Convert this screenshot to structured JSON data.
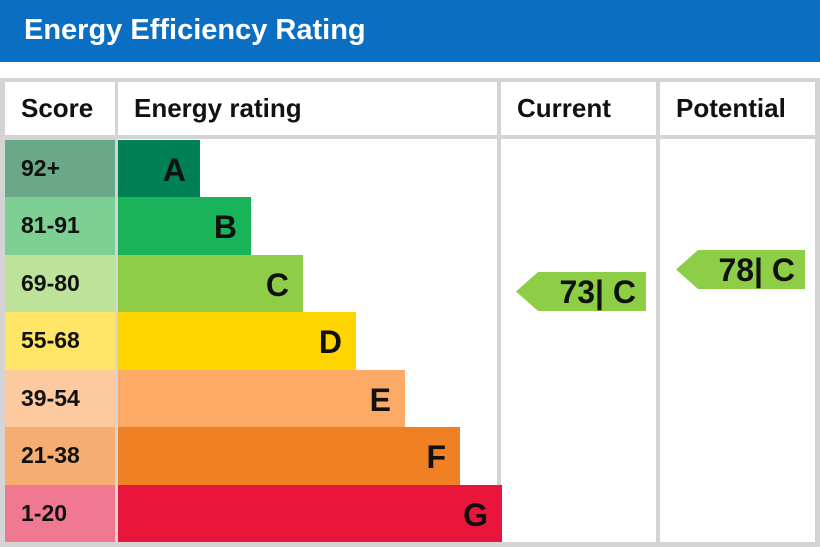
{
  "title": "Energy Efficiency Rating",
  "chart_data": {
    "type": "table",
    "title": "Energy Efficiency Rating",
    "headers": {
      "score": "Score",
      "rating": "Energy rating",
      "current": "Current",
      "potential": "Potential"
    },
    "bands": [
      {
        "score": "92+",
        "letter": "A",
        "color": "#008054",
        "score_color": "#6aa88a"
      },
      {
        "score": "81-91",
        "letter": "B",
        "color": "#19b459",
        "score_color": "#7dcf94"
      },
      {
        "score": "69-80",
        "letter": "C",
        "color": "#8dce46",
        "score_color": "#bde39a"
      },
      {
        "score": "55-68",
        "letter": "D",
        "color": "#ffd500",
        "score_color": "#ffe566"
      },
      {
        "score": "39-54",
        "letter": "E",
        "color": "#fcaa65",
        "score_color": "#fdcaa0"
      },
      {
        "score": "21-38",
        "letter": "F",
        "color": "#ef8023",
        "score_color": "#f5ad72"
      },
      {
        "score": "1-20",
        "letter": "G",
        "color": "#e9153b",
        "score_color": "#f07890"
      }
    ],
    "current": {
      "value": 73,
      "band": "C",
      "label": "73| C",
      "color": "#8dce46"
    },
    "potential": {
      "value": 78,
      "band": "C",
      "label": "78| C",
      "color": "#8dce46"
    }
  }
}
